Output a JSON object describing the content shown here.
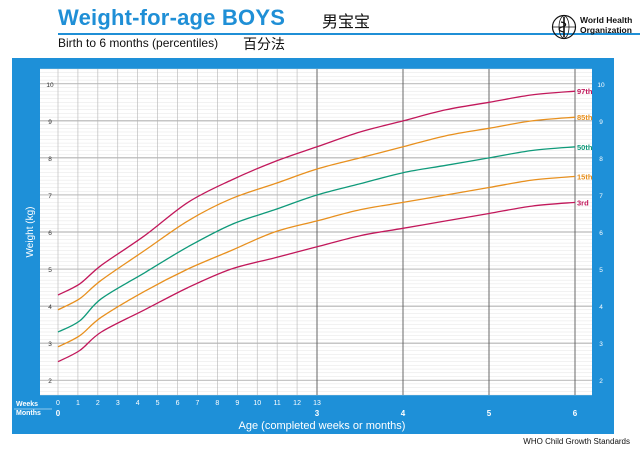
{
  "header": {
    "title": "Weight-for-age BOYS",
    "title_cn": "男宝宝",
    "subtitle": "Birth to 6 months (percentiles)",
    "subtitle_cn": "百分法",
    "org_line1": "World Health",
    "org_line2": "Organization"
  },
  "footer": {
    "credit": "WHO Child Growth Standards"
  },
  "colors": {
    "frame_blue": "#1e90d8",
    "title_blue": "#1f8fd6",
    "plot_bg": "#ffffff",
    "grid_minor": "#b4b4b4",
    "grid_major": "#5a5a5a",
    "p97": "#c2185b",
    "p85": "#e8901e",
    "p50": "#0f9a7a",
    "p15": "#e8901e",
    "p3": "#c2185b"
  },
  "chart_data": {
    "type": "line",
    "title": "Weight-for-age BOYS",
    "subtitle": "Birth to 6 months (percentiles)",
    "xlabel": "Age (completed weeks or months)",
    "ylabel": "Weight (kg)",
    "ylim": [
      1.6,
      10.4
    ],
    "yticks": [
      2,
      3,
      4,
      5,
      6,
      7,
      8,
      9,
      10
    ],
    "weeks_ticks": [
      "0",
      "1",
      "2",
      "3",
      "4",
      "5",
      "6",
      "7",
      "8",
      "9",
      "10",
      "11",
      "12",
      "13"
    ],
    "months_ticks": [
      "0",
      "3",
      "4",
      "5",
      "6"
    ],
    "weeks_row_label": "Weeks",
    "months_row_label": "Months",
    "grid": true,
    "legend": "right-end labels",
    "x_unit": "months",
    "series": [
      {
        "name": "97th",
        "color": "#c2185b",
        "x": [
          0,
          0.25,
          0.5,
          1,
          1.5,
          2,
          2.5,
          3,
          3.5,
          4,
          4.5,
          5,
          5.5,
          6
        ],
        "values": [
          4.3,
          4.6,
          5.1,
          5.9,
          6.8,
          7.4,
          7.9,
          8.3,
          8.7,
          9.0,
          9.3,
          9.5,
          9.7,
          9.8
        ]
      },
      {
        "name": "85th",
        "color": "#e8901e",
        "x": [
          0,
          0.25,
          0.5,
          1,
          1.5,
          2,
          2.5,
          3,
          3.5,
          4,
          4.5,
          5,
          5.5,
          6
        ],
        "values": [
          3.9,
          4.2,
          4.7,
          5.5,
          6.3,
          6.9,
          7.3,
          7.7,
          8.0,
          8.3,
          8.6,
          8.8,
          9.0,
          9.1
        ]
      },
      {
        "name": "50th",
        "color": "#0f9a7a",
        "x": [
          0,
          0.25,
          0.5,
          1,
          1.5,
          2,
          2.5,
          3,
          3.5,
          4,
          4.5,
          5,
          5.5,
          6
        ],
        "values": [
          3.3,
          3.6,
          4.2,
          4.9,
          5.6,
          6.2,
          6.6,
          7.0,
          7.3,
          7.6,
          7.8,
          8.0,
          8.2,
          8.3
        ]
      },
      {
        "name": "15th",
        "color": "#e8901e",
        "x": [
          0,
          0.25,
          0.5,
          1,
          1.5,
          2,
          2.5,
          3,
          3.5,
          4,
          4.5,
          5,
          5.5,
          6
        ],
        "values": [
          2.9,
          3.2,
          3.7,
          4.4,
          5.0,
          5.5,
          6.0,
          6.3,
          6.6,
          6.8,
          7.0,
          7.2,
          7.4,
          7.5
        ]
      },
      {
        "name": "3rd",
        "color": "#c2185b",
        "x": [
          0,
          0.25,
          0.5,
          1,
          1.5,
          2,
          2.5,
          3,
          3.5,
          4,
          4.5,
          5,
          5.5,
          6
        ],
        "values": [
          2.5,
          2.8,
          3.3,
          3.9,
          4.5,
          5.0,
          5.3,
          5.6,
          5.9,
          6.1,
          6.3,
          6.5,
          6.7,
          6.8
        ]
      }
    ]
  }
}
